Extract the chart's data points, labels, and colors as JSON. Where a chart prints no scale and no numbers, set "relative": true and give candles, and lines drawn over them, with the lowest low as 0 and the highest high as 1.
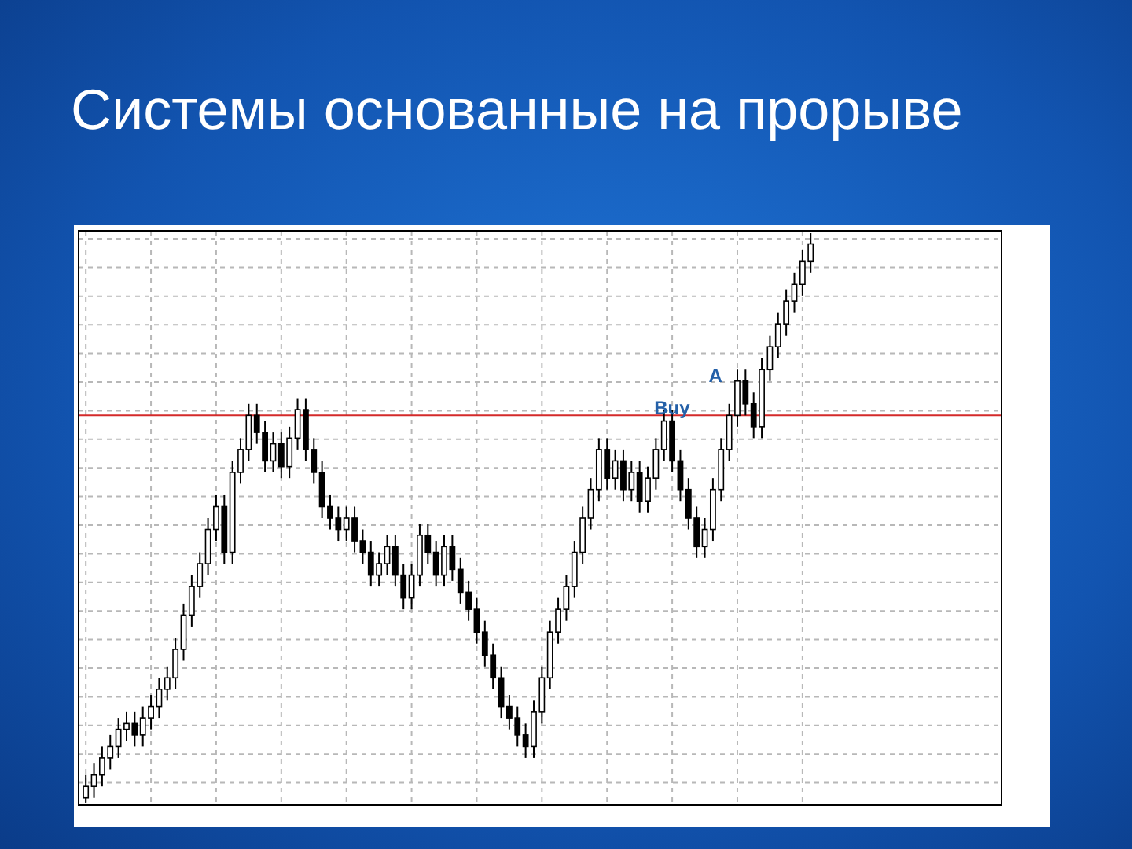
{
  "chart_data": {
    "type": "candlestick",
    "title": "Системы основанные на прорыве",
    "relative": true,
    "grid": true,
    "color": "#000000",
    "categories": [
      null,
      null,
      null,
      null,
      null,
      null,
      null,
      null,
      null,
      null,
      null,
      null,
      null,
      null,
      null,
      null,
      null,
      null,
      null,
      null,
      null,
      null,
      null,
      null,
      null,
      null,
      null,
      null,
      null,
      null,
      null,
      null,
      null,
      null,
      null,
      null,
      null,
      null,
      null,
      null,
      null,
      null,
      null,
      null,
      null,
      null,
      null,
      null,
      null,
      null,
      null,
      null,
      null,
      null,
      null,
      null,
      null,
      null,
      null,
      null,
      null,
      null,
      null,
      null,
      null,
      null,
      null,
      null,
      null,
      null,
      null,
      null,
      null,
      null,
      null,
      null,
      null,
      null,
      null,
      null,
      null,
      null,
      null,
      null,
      null,
      null,
      null,
      null,
      null,
      null
    ],
    "ohlc": [
      [
        0.01,
        0.05,
        0,
        0.03
      ],
      [
        0.03,
        0.07,
        0.01,
        0.05
      ],
      [
        0.05,
        0.1,
        0.03,
        0.08
      ],
      [
        0.08,
        0.12,
        0.06,
        0.1
      ],
      [
        0.1,
        0.15,
        0.08,
        0.13
      ],
      [
        0.13,
        0.16,
        0.11,
        0.14
      ],
      [
        0.14,
        0.16,
        0.1,
        0.12
      ],
      [
        0.12,
        0.17,
        0.1,
        0.15
      ],
      [
        0.15,
        0.19,
        0.13,
        0.17
      ],
      [
        0.17,
        0.22,
        0.15,
        0.2
      ],
      [
        0.2,
        0.24,
        0.18,
        0.22
      ],
      [
        0.22,
        0.29,
        0.2,
        0.27
      ],
      [
        0.27,
        0.35,
        0.25,
        0.33
      ],
      [
        0.33,
        0.4,
        0.31,
        0.38
      ],
      [
        0.38,
        0.44,
        0.36,
        0.42
      ],
      [
        0.42,
        0.5,
        0.4,
        0.48
      ],
      [
        0.48,
        0.54,
        0.46,
        0.52
      ],
      [
        0.52,
        0.54,
        0.42,
        0.44
      ],
      [
        0.44,
        0.6,
        0.42,
        0.58
      ],
      [
        0.58,
        0.64,
        0.56,
        0.62
      ],
      [
        0.62,
        0.7,
        0.6,
        0.68
      ],
      [
        0.68,
        0.7,
        0.63,
        0.65
      ],
      [
        0.65,
        0.67,
        0.58,
        0.6
      ],
      [
        0.6,
        0.65,
        0.58,
        0.63
      ],
      [
        0.63,
        0.65,
        0.57,
        0.59
      ],
      [
        0.59,
        0.66,
        0.57,
        0.64
      ],
      [
        0.64,
        0.71,
        0.62,
        0.69
      ],
      [
        0.69,
        0.71,
        0.6,
        0.62
      ],
      [
        0.62,
        0.64,
        0.56,
        0.58
      ],
      [
        0.58,
        0.6,
        0.5,
        0.52
      ],
      [
        0.52,
        0.54,
        0.48,
        0.5
      ],
      [
        0.5,
        0.52,
        0.46,
        0.48
      ],
      [
        0.48,
        0.52,
        0.46,
        0.5
      ],
      [
        0.5,
        0.52,
        0.44,
        0.46
      ],
      [
        0.46,
        0.48,
        0.42,
        0.44
      ],
      [
        0.44,
        0.46,
        0.38,
        0.4
      ],
      [
        0.4,
        0.44,
        0.38,
        0.42
      ],
      [
        0.42,
        0.47,
        0.4,
        0.45
      ],
      [
        0.45,
        0.47,
        0.38,
        0.4
      ],
      [
        0.4,
        0.42,
        0.34,
        0.36
      ],
      [
        0.36,
        0.42,
        0.34,
        0.4
      ],
      [
        0.4,
        0.49,
        0.38,
        0.47
      ],
      [
        0.47,
        0.49,
        0.42,
        0.44
      ],
      [
        0.44,
        0.46,
        0.38,
        0.4
      ],
      [
        0.4,
        0.47,
        0.38,
        0.45
      ],
      [
        0.45,
        0.47,
        0.39,
        0.41
      ],
      [
        0.41,
        0.43,
        0.35,
        0.37
      ],
      [
        0.37,
        0.39,
        0.32,
        0.34
      ],
      [
        0.34,
        0.36,
        0.28,
        0.3
      ],
      [
        0.3,
        0.32,
        0.24,
        0.26
      ],
      [
        0.26,
        0.28,
        0.2,
        0.22
      ],
      [
        0.22,
        0.24,
        0.15,
        0.17
      ],
      [
        0.17,
        0.19,
        0.13,
        0.15
      ],
      [
        0.15,
        0.17,
        0.1,
        0.12
      ],
      [
        0.12,
        0.14,
        0.08,
        0.1
      ],
      [
        0.1,
        0.18,
        0.08,
        0.16
      ],
      [
        0.16,
        0.24,
        0.14,
        0.22
      ],
      [
        0.22,
        0.32,
        0.2,
        0.3
      ],
      [
        0.3,
        0.36,
        0.28,
        0.34
      ],
      [
        0.34,
        0.4,
        0.32,
        0.38
      ],
      [
        0.38,
        0.46,
        0.36,
        0.44
      ],
      [
        0.44,
        0.52,
        0.42,
        0.5
      ],
      [
        0.5,
        0.57,
        0.48,
        0.55
      ],
      [
        0.55,
        0.64,
        0.53,
        0.62
      ],
      [
        0.62,
        0.64,
        0.55,
        0.57
      ],
      [
        0.57,
        0.62,
        0.55,
        0.6
      ],
      [
        0.6,
        0.62,
        0.53,
        0.55
      ],
      [
        0.55,
        0.6,
        0.53,
        0.58
      ],
      [
        0.58,
        0.6,
        0.51,
        0.53
      ],
      [
        0.53,
        0.59,
        0.51,
        0.57
      ],
      [
        0.57,
        0.64,
        0.55,
        0.62
      ],
      [
        0.62,
        0.69,
        0.6,
        0.67
      ],
      [
        0.67,
        0.69,
        0.58,
        0.6
      ],
      [
        0.6,
        0.62,
        0.53,
        0.55
      ],
      [
        0.55,
        0.57,
        0.48,
        0.5
      ],
      [
        0.5,
        0.52,
        0.43,
        0.45
      ],
      [
        0.45,
        0.5,
        0.43,
        0.48
      ],
      [
        0.48,
        0.57,
        0.46,
        0.55
      ],
      [
        0.55,
        0.64,
        0.53,
        0.62
      ],
      [
        0.62,
        0.7,
        0.6,
        0.68
      ],
      [
        0.68,
        0.76,
        0.66,
        0.74
      ],
      [
        0.74,
        0.76,
        0.68,
        0.7
      ],
      [
        0.7,
        0.72,
        0.64,
        0.66
      ],
      [
        0.66,
        0.78,
        0.64,
        0.76
      ],
      [
        0.76,
        0.82,
        0.74,
        0.8
      ],
      [
        0.8,
        0.86,
        0.78,
        0.84
      ],
      [
        0.84,
        0.9,
        0.82,
        0.88
      ],
      [
        0.88,
        0.93,
        0.86,
        0.91
      ],
      [
        0.91,
        0.97,
        0.89,
        0.95
      ],
      [
        0.95,
        1,
        0.93,
        0.98
      ]
    ],
    "ref_lines": [
      {
        "axis": "y",
        "value": 0.68,
        "color": "#d42a2a"
      }
    ],
    "annotations": [
      "Buy",
      "A"
    ]
  }
}
